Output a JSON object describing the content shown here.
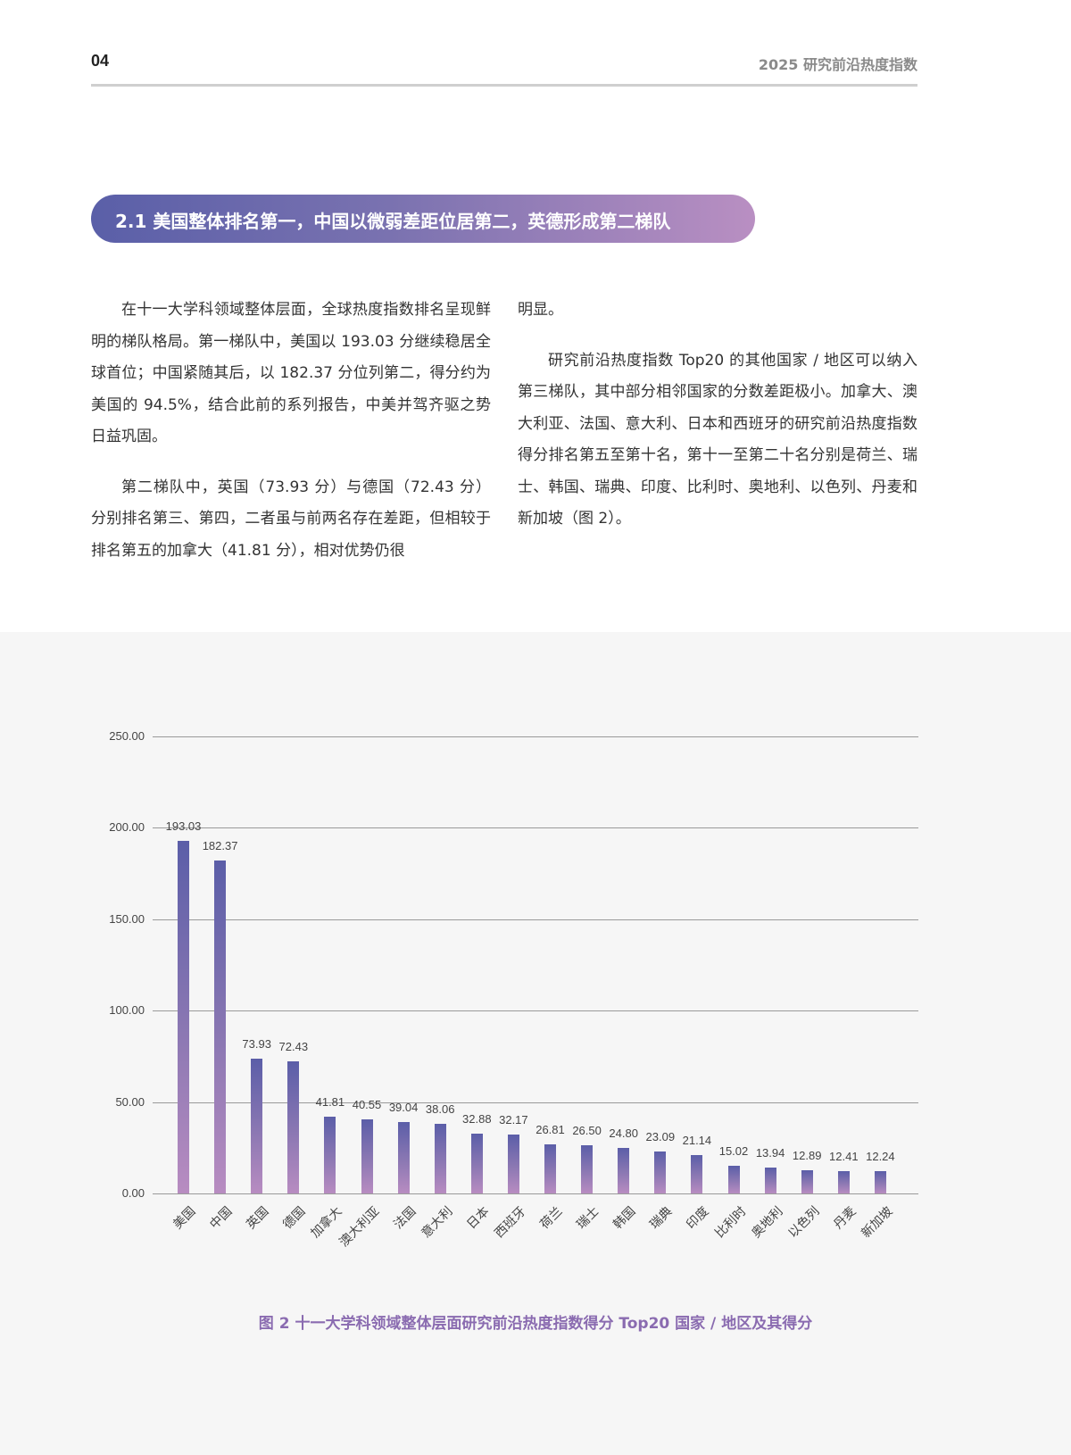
{
  "header": {
    "page_number": "04",
    "running_title": "2025 研究前沿热度指数"
  },
  "section": {
    "title": "2.1 美国整体排名第一，中国以微弱差距位居第二，英德形成第二梯队"
  },
  "body": {
    "left_paragraphs": [
      "在十一大学科领域整体层面，全球热度指数排名呈现鲜明的梯队格局。第一梯队中，美国以 193.03 分继续稳居全球首位；中国紧随其后，以 182.37 分位列第二，得分约为美国的 94.5%，结合此前的系列报告，中美并驾齐驱之势日益巩固。",
      "第二梯队中，英国（73.93 分）与德国（72.43 分）分别排名第三、第四，二者虽与前两名存在差距，但相较于排名第五的加拿大（41.81 分），相对优势仍很"
    ],
    "right_paragraphs": [
      "明显。",
      "研究前沿热度指数 Top20 的其他国家 / 地区可以纳入第三梯队，其中部分相邻国家的分数差距极小。加拿大、澳大利亚、法国、意大利、日本和西班牙的研究前沿热度指数得分排名第五至第十名，第十一至第二十名分别是荷兰、瑞士、韩国、瑞典、印度、比利时、奥地利、以色列、丹麦和新加坡（图 2）。"
    ]
  },
  "chart_data": {
    "type": "bar",
    "title": "图 2 十一大学科领域整体层面研究前沿热度指数得分 Top20 国家 / 地区及其得分",
    "xlabel": "",
    "ylabel": "",
    "ylim": [
      0,
      250
    ],
    "yticks": [
      "0.00",
      "50.00",
      "100.00",
      "150.00",
      "200.00",
      "250.00"
    ],
    "grid": true,
    "legend": null,
    "categories": [
      "美国",
      "中国",
      "英国",
      "德国",
      "加拿大",
      "澳大利亚",
      "法国",
      "意大利",
      "日本",
      "西班牙",
      "荷兰",
      "瑞士",
      "韩国",
      "瑞典",
      "印度",
      "比利时",
      "奥地利",
      "以色列",
      "丹麦",
      "新加坡"
    ],
    "values": [
      193.03,
      182.37,
      73.93,
      72.43,
      41.81,
      40.55,
      39.04,
      38.06,
      32.88,
      32.17,
      26.81,
      26.5,
      24.8,
      23.09,
      21.14,
      15.02,
      13.94,
      12.89,
      12.41,
      12.24
    ],
    "value_labels": [
      "193.03",
      "182.37",
      "73.93",
      "72.43",
      "41.81",
      "40.55",
      "39.04",
      "38.06",
      "32.88",
      "32.17",
      "26.81",
      "26.50",
      "24.80",
      "23.09",
      "21.14",
      "15.02",
      "13.94",
      "12.89",
      "12.41",
      "12.24"
    ],
    "colors": {
      "bar_top": "#5b5ea8",
      "bar_bottom": "#b88cc1",
      "caption": "#8a6bb0"
    }
  }
}
